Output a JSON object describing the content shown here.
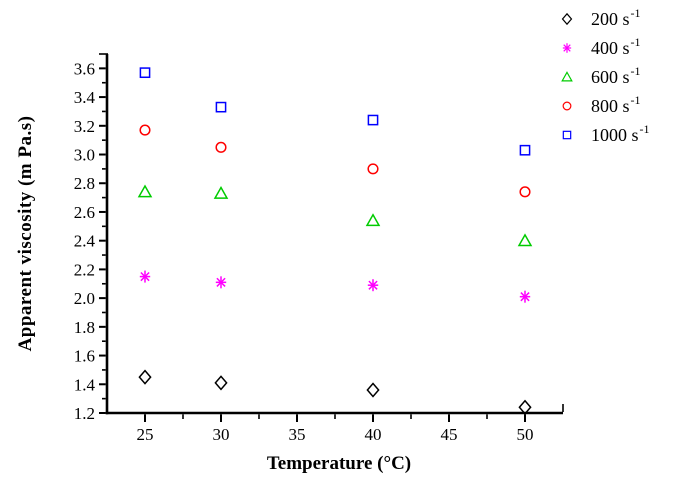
{
  "chart_data": {
    "type": "scatter",
    "title": "",
    "xlabel": "Temperature (°C)",
    "ylabel": "Apparent viscosity (m Pa.s)",
    "xlim": [
      22.5,
      52.5
    ],
    "ylim": [
      1.2,
      3.7
    ],
    "grid": false,
    "legend_position": "outside-top-right",
    "x": [
      25,
      30,
      40,
      50
    ],
    "xtick_labels": [
      "25",
      "30",
      "35",
      "40",
      "45",
      "50"
    ],
    "xticks_minor": [
      27.5,
      32.5,
      37.5,
      42.5,
      47.5
    ],
    "ytick_labels": [
      "1.2",
      "1.4",
      "1.6",
      "1.8",
      "2.0",
      "2.2",
      "2.4",
      "2.6",
      "2.8",
      "3.0",
      "3.2",
      "3.4",
      "3.6"
    ],
    "yticks_minor": [
      1.3,
      1.5,
      1.7,
      1.9,
      2.1,
      2.3,
      2.5,
      2.7,
      2.9,
      3.1,
      3.3,
      3.5
    ],
    "series": [
      {
        "name": "200 s",
        "exp": "-1",
        "marker": "diamond",
        "color": "#000000",
        "values": [
          1.45,
          1.41,
          1.36,
          1.24
        ]
      },
      {
        "name": "400 s",
        "exp": "-1",
        "marker": "asterisk",
        "color": "#FF00FF",
        "values": [
          2.15,
          2.11,
          2.09,
          2.01
        ]
      },
      {
        "name": "600 s",
        "exp": "-1",
        "marker": "triangle-up",
        "color": "#00CC00",
        "values": [
          2.74,
          2.73,
          2.54,
          2.4
        ]
      },
      {
        "name": "800 s",
        "exp": "-1",
        "marker": "circle",
        "color": "#FF0000",
        "values": [
          3.17,
          3.05,
          2.9,
          2.74
        ]
      },
      {
        "name": "1000 s",
        "exp": "-1",
        "marker": "square",
        "color": "#0000FF",
        "values": [
          3.57,
          3.33,
          3.24,
          3.03
        ]
      }
    ]
  }
}
